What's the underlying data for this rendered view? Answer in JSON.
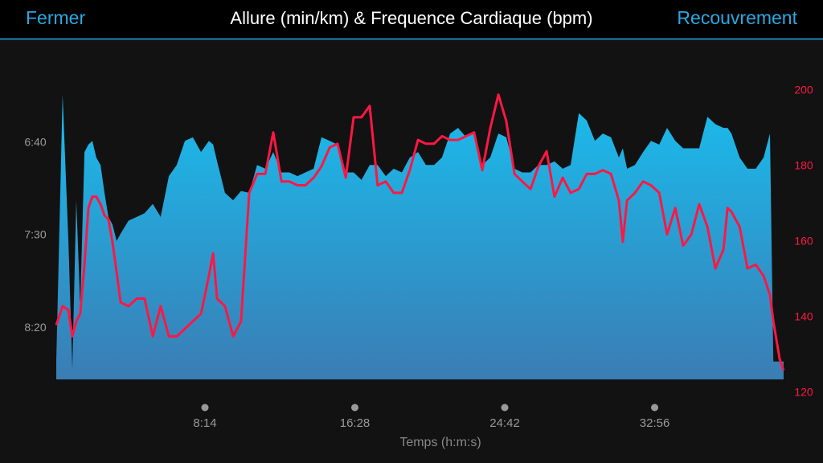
{
  "header": {
    "left_button": "Fermer",
    "right_button": "Recouvrement"
  },
  "chart_data": {
    "type": "area_line",
    "title": "Allure (min/km) & Frequence Cardiaque (bpm)",
    "xlabel": "Temps (h:m:s)",
    "x": [
      4,
      25,
      44,
      57,
      70,
      83,
      97,
      110,
      123,
      136,
      150,
      163,
      176,
      189,
      203,
      216,
      242,
      269,
      295,
      322,
      348,
      375,
      401,
      428,
      454,
      481,
      507,
      521,
      534,
      560,
      587,
      613,
      640,
      666,
      693,
      719,
      746,
      772,
      799,
      825,
      852,
      878,
      905,
      931,
      958,
      984,
      1010,
      1037,
      1063,
      1090,
      1116,
      1143,
      1169,
      1196,
      1222,
      1249,
      1275,
      1302,
      1328,
      1355,
      1381,
      1408,
      1434,
      1461,
      1487,
      1514,
      1540,
      1567,
      1593,
      1620,
      1646,
      1673,
      1699,
      1726,
      1752,
      1779,
      1805,
      1832,
      1858,
      1871,
      1885,
      1911,
      1938,
      1964,
      1991,
      2017,
      2044,
      2070,
      2097,
      2123,
      2150,
      2176,
      2203,
      2216,
      2229,
      2256,
      2282,
      2309,
      2335,
      2356,
      2367,
      2388,
      2401
    ],
    "series": [
      {
        "name": "Allure",
        "color": "#1ab6e6",
        "axis": "y",
        "values": [
          518,
          374,
          453,
          522,
          431,
          488,
          405,
          401,
          399,
          408,
          412,
          427,
          440,
          444,
          453,
          449,
          442,
          440,
          438,
          433,
          440,
          418,
          412,
          399,
          397,
          405,
          399,
          401,
          410,
          427,
          431,
          426,
          427,
          412,
          414,
          405,
          416,
          416,
          418,
          416,
          414,
          397,
          399,
          401,
          416,
          416,
          420,
          412,
          412,
          418,
          414,
          416,
          408,
          405,
          412,
          412,
          408,
          395,
          392,
          397,
          395,
          412,
          408,
          395,
          397,
          414,
          416,
          416,
          412,
          412,
          410,
          414,
          412,
          384,
          388,
          399,
          395,
          397,
          408,
          403,
          414,
          412,
          405,
          399,
          401,
          392,
          399,
          403,
          403,
          403,
          386,
          390,
          392,
          392,
          395,
          408,
          414,
          414,
          408,
          395,
          518,
          518,
          518
        ]
      },
      {
        "name": "Frequence Cardiaque",
        "color": "#ff1744",
        "axis": "y2",
        "values": [
          138,
          143,
          142,
          135,
          139,
          141,
          154,
          169,
          172,
          172,
          170,
          167,
          166,
          160,
          152,
          144,
          143,
          145,
          145,
          135,
          143,
          135,
          135,
          137,
          139,
          141,
          151,
          157,
          145,
          143,
          135,
          139,
          173,
          178,
          178,
          189,
          176,
          176,
          175,
          175,
          177,
          180,
          185,
          186,
          177,
          193,
          193,
          196,
          175,
          176,
          173,
          173,
          179,
          187,
          186,
          186,
          188,
          187,
          187,
          188,
          189,
          179,
          190,
          199,
          192,
          178,
          176,
          174,
          180,
          184,
          172,
          177,
          173,
          174,
          178,
          178,
          179,
          178,
          171,
          160,
          171,
          173,
          176,
          175,
          173,
          162,
          169,
          159,
          162,
          170,
          164,
          153,
          158,
          169,
          168,
          164,
          153,
          154,
          151,
          146,
          139,
          129,
          126
        ]
      }
    ],
    "xlim": [
      0,
      2401
    ],
    "xticks": [
      {
        "value": 494,
        "label": "8:14"
      },
      {
        "value": 988,
        "label": "16:28"
      },
      {
        "value": 1482,
        "label": "24:42"
      },
      {
        "value": 1976,
        "label": "32:56"
      }
    ],
    "ylim": [
      535,
      372
    ],
    "yticks": [
      {
        "value": 400,
        "label": "6:40"
      },
      {
        "value": 450,
        "label": "7:30"
      },
      {
        "value": 500,
        "label": "8:20"
      }
    ],
    "y2lim": [
      120,
      200
    ],
    "y2ticks": [
      120,
      140,
      160,
      180,
      200
    ]
  }
}
